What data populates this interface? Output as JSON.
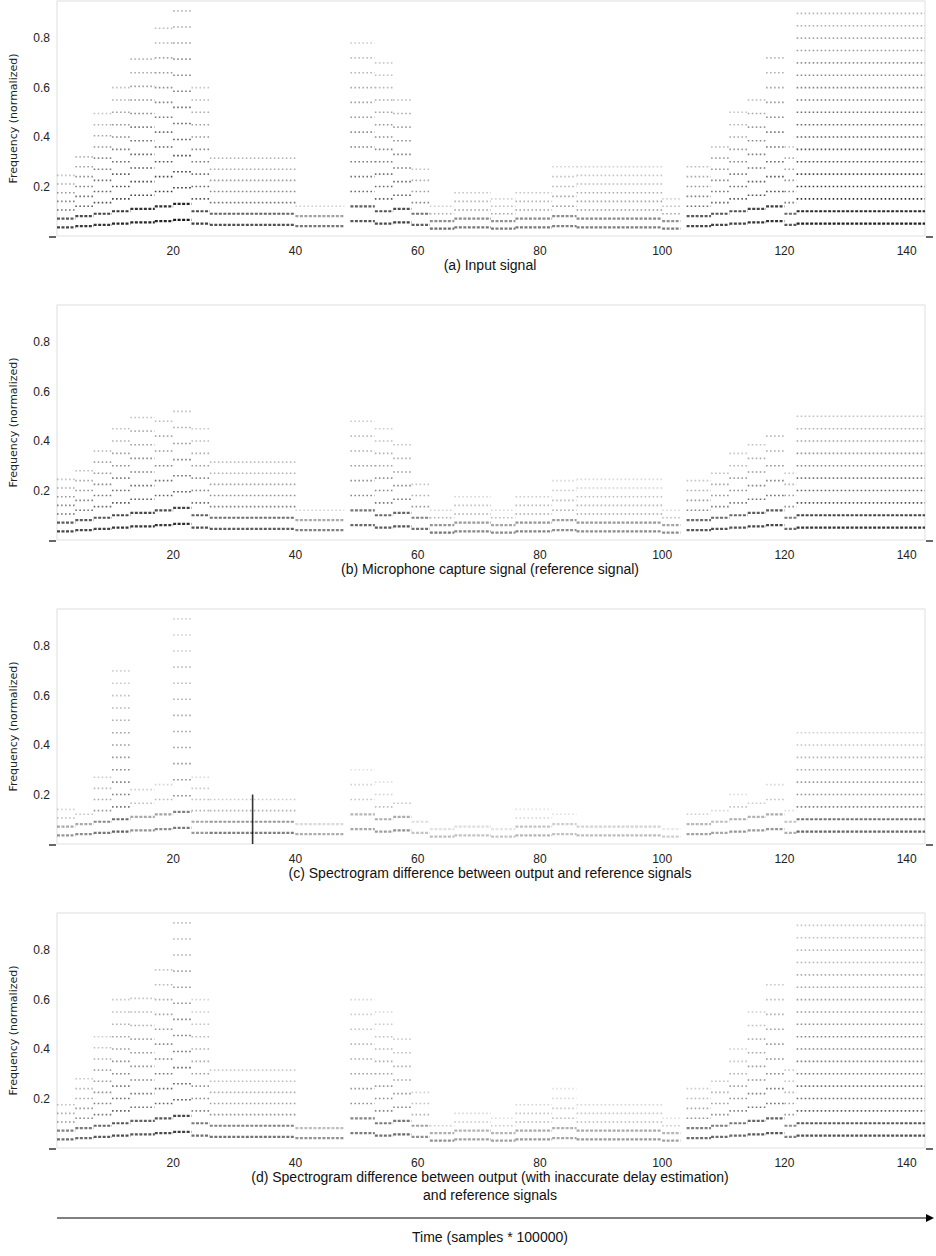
{
  "xlabel": "Time (samples * 100000)",
  "chart_data": [
    {
      "type": "spectrogram",
      "title": "(a) Input signal",
      "ylabel": "Frequency (normalized)",
      "xlim": [
        1,
        143
      ],
      "ylim": [
        0,
        0.95
      ],
      "xticks": [
        20,
        40,
        60,
        80,
        100,
        120,
        140
      ],
      "yticks": [
        0.2,
        0.4,
        0.6,
        0.8
      ],
      "color": "#000000",
      "notes": [
        {
          "start": 1,
          "end": 4,
          "f0": 0.035,
          "fmax": 0.25,
          "level": 0.8
        },
        {
          "start": 4,
          "end": 7,
          "f0": 0.04,
          "fmax": 0.35,
          "level": 0.85
        },
        {
          "start": 7,
          "end": 10,
          "f0": 0.045,
          "fmax": 0.5,
          "level": 0.85
        },
        {
          "start": 10,
          "end": 13,
          "f0": 0.05,
          "fmax": 0.6,
          "level": 0.9
        },
        {
          "start": 13,
          "end": 17,
          "f0": 0.055,
          "fmax": 0.75,
          "level": 0.9
        },
        {
          "start": 17,
          "end": 20,
          "f0": 0.06,
          "fmax": 0.85,
          "level": 0.9
        },
        {
          "start": 20,
          "end": 23,
          "f0": 0.065,
          "fmax": 0.95,
          "level": 0.95
        },
        {
          "start": 23,
          "end": 26,
          "f0": 0.05,
          "fmax": 0.6,
          "level": 0.8
        },
        {
          "start": 26,
          "end": 40,
          "f0": 0.045,
          "fmax": 0.35,
          "level": 0.75
        },
        {
          "start": 40,
          "end": 48,
          "f0": 0.04,
          "fmax": 0.12,
          "level": 0.7
        },
        {
          "start": 49,
          "end": 53,
          "f0": 0.06,
          "fmax": 0.8,
          "level": 0.7
        },
        {
          "start": 53,
          "end": 56,
          "f0": 0.05,
          "fmax": 0.7,
          "level": 0.75
        },
        {
          "start": 56,
          "end": 59,
          "f0": 0.055,
          "fmax": 0.6,
          "level": 0.8
        },
        {
          "start": 59,
          "end": 62,
          "f0": 0.045,
          "fmax": 0.3,
          "level": 0.7
        },
        {
          "start": 62,
          "end": 66,
          "f0": 0.03,
          "fmax": 0.12,
          "level": 0.7
        },
        {
          "start": 66,
          "end": 72,
          "f0": 0.035,
          "fmax": 0.2,
          "level": 0.6
        },
        {
          "start": 72,
          "end": 76,
          "f0": 0.03,
          "fmax": 0.15,
          "level": 0.6
        },
        {
          "start": 76,
          "end": 82,
          "f0": 0.035,
          "fmax": 0.2,
          "level": 0.6
        },
        {
          "start": 82,
          "end": 86,
          "f0": 0.04,
          "fmax": 0.3,
          "level": 0.55
        },
        {
          "start": 86,
          "end": 100,
          "f0": 0.035,
          "fmax": 0.3,
          "level": 0.55
        },
        {
          "start": 100,
          "end": 103,
          "f0": 0.03,
          "fmax": 0.15,
          "level": 0.6
        },
        {
          "start": 104,
          "end": 108,
          "f0": 0.04,
          "fmax": 0.3,
          "level": 0.8
        },
        {
          "start": 108,
          "end": 111,
          "f0": 0.045,
          "fmax": 0.4,
          "level": 0.8
        },
        {
          "start": 111,
          "end": 114,
          "f0": 0.05,
          "fmax": 0.5,
          "level": 0.8
        },
        {
          "start": 114,
          "end": 117,
          "f0": 0.055,
          "fmax": 0.6,
          "level": 0.85
        },
        {
          "start": 117,
          "end": 120,
          "f0": 0.06,
          "fmax": 0.75,
          "level": 0.85
        },
        {
          "start": 120,
          "end": 122,
          "f0": 0.045,
          "fmax": 0.4,
          "level": 0.7
        },
        {
          "start": 122,
          "end": 143,
          "f0": 0.05,
          "fmax": 0.95,
          "level": 0.9
        }
      ]
    },
    {
      "type": "spectrogram",
      "title": "(b) Microphone capture signal (reference signal)",
      "ylabel": "Frequency (normalized)",
      "xlim": [
        1,
        143
      ],
      "ylim": [
        0,
        0.95
      ],
      "xticks": [
        20,
        40,
        60,
        80,
        100,
        120,
        140
      ],
      "yticks": [
        0.2,
        0.4,
        0.6,
        0.8
      ],
      "color": "#000000",
      "notes": [
        {
          "start": 1,
          "end": 4,
          "f0": 0.035,
          "fmax": 0.25,
          "level": 0.8
        },
        {
          "start": 4,
          "end": 7,
          "f0": 0.04,
          "fmax": 0.3,
          "level": 0.8
        },
        {
          "start": 7,
          "end": 10,
          "f0": 0.045,
          "fmax": 0.4,
          "level": 0.8
        },
        {
          "start": 10,
          "end": 13,
          "f0": 0.05,
          "fmax": 0.45,
          "level": 0.85
        },
        {
          "start": 13,
          "end": 17,
          "f0": 0.055,
          "fmax": 0.5,
          "level": 0.85
        },
        {
          "start": 17,
          "end": 20,
          "f0": 0.06,
          "fmax": 0.5,
          "level": 0.85
        },
        {
          "start": 20,
          "end": 23,
          "f0": 0.065,
          "fmax": 0.52,
          "level": 0.9
        },
        {
          "start": 23,
          "end": 26,
          "f0": 0.05,
          "fmax": 0.45,
          "level": 0.75
        },
        {
          "start": 26,
          "end": 40,
          "f0": 0.045,
          "fmax": 0.35,
          "level": 0.7
        },
        {
          "start": 40,
          "end": 48,
          "f0": 0.04,
          "fmax": 0.12,
          "level": 0.65
        },
        {
          "start": 49,
          "end": 53,
          "f0": 0.06,
          "fmax": 0.5,
          "level": 0.65
        },
        {
          "start": 53,
          "end": 56,
          "f0": 0.05,
          "fmax": 0.45,
          "level": 0.7
        },
        {
          "start": 56,
          "end": 59,
          "f0": 0.055,
          "fmax": 0.4,
          "level": 0.75
        },
        {
          "start": 59,
          "end": 62,
          "f0": 0.045,
          "fmax": 0.25,
          "level": 0.65
        },
        {
          "start": 62,
          "end": 66,
          "f0": 0.03,
          "fmax": 0.12,
          "level": 0.65
        },
        {
          "start": 66,
          "end": 72,
          "f0": 0.035,
          "fmax": 0.18,
          "level": 0.55
        },
        {
          "start": 72,
          "end": 76,
          "f0": 0.03,
          "fmax": 0.12,
          "level": 0.55
        },
        {
          "start": 76,
          "end": 82,
          "f0": 0.035,
          "fmax": 0.2,
          "level": 0.55
        },
        {
          "start": 82,
          "end": 86,
          "f0": 0.04,
          "fmax": 0.25,
          "level": 0.5
        },
        {
          "start": 86,
          "end": 100,
          "f0": 0.035,
          "fmax": 0.25,
          "level": 0.5
        },
        {
          "start": 100,
          "end": 103,
          "f0": 0.03,
          "fmax": 0.12,
          "level": 0.55
        },
        {
          "start": 104,
          "end": 108,
          "f0": 0.04,
          "fmax": 0.25,
          "level": 0.75
        },
        {
          "start": 108,
          "end": 111,
          "f0": 0.045,
          "fmax": 0.3,
          "level": 0.75
        },
        {
          "start": 111,
          "end": 114,
          "f0": 0.05,
          "fmax": 0.35,
          "level": 0.75
        },
        {
          "start": 114,
          "end": 117,
          "f0": 0.055,
          "fmax": 0.4,
          "level": 0.8
        },
        {
          "start": 117,
          "end": 120,
          "f0": 0.06,
          "fmax": 0.45,
          "level": 0.8
        },
        {
          "start": 120,
          "end": 122,
          "f0": 0.045,
          "fmax": 0.3,
          "level": 0.65
        },
        {
          "start": 122,
          "end": 143,
          "f0": 0.05,
          "fmax": 0.5,
          "level": 0.85
        }
      ]
    },
    {
      "type": "spectrogram",
      "title": "(c) Spectrogram difference between output and reference signals",
      "ylabel": "Frequency (normalized)",
      "xlim": [
        1,
        143
      ],
      "ylim": [
        0,
        0.95
      ],
      "xticks": [
        20,
        40,
        60,
        80,
        100,
        120,
        140
      ],
      "yticks": [
        0.2,
        0.4,
        0.6,
        0.8
      ],
      "color": "#000000",
      "notes": [
        {
          "start": 1,
          "end": 4,
          "f0": 0.035,
          "fmax": 0.15,
          "level": 0.5
        },
        {
          "start": 4,
          "end": 7,
          "f0": 0.04,
          "fmax": 0.15,
          "level": 0.55
        },
        {
          "start": 7,
          "end": 10,
          "f0": 0.045,
          "fmax": 0.3,
          "level": 0.6
        },
        {
          "start": 10,
          "end": 13,
          "f0": 0.05,
          "fmax": 0.7,
          "level": 0.65
        },
        {
          "start": 13,
          "end": 17,
          "f0": 0.055,
          "fmax": 0.25,
          "level": 0.5
        },
        {
          "start": 17,
          "end": 20,
          "f0": 0.06,
          "fmax": 0.25,
          "level": 0.55
        },
        {
          "start": 20,
          "end": 23,
          "f0": 0.065,
          "fmax": 0.95,
          "level": 0.55
        },
        {
          "start": 23,
          "end": 26,
          "f0": 0.045,
          "fmax": 0.3,
          "level": 0.45
        },
        {
          "start": 26,
          "end": 40,
          "f0": 0.045,
          "fmax": 0.2,
          "level": 0.6
        },
        {
          "start": 40,
          "end": 48,
          "f0": 0.04,
          "fmax": 0.08,
          "level": 0.5
        },
        {
          "start": 49,
          "end": 53,
          "f0": 0.06,
          "fmax": 0.3,
          "level": 0.4
        },
        {
          "start": 53,
          "end": 56,
          "f0": 0.05,
          "fmax": 0.25,
          "level": 0.45
        },
        {
          "start": 56,
          "end": 59,
          "f0": 0.055,
          "fmax": 0.2,
          "level": 0.55
        },
        {
          "start": 59,
          "end": 62,
          "f0": 0.045,
          "fmax": 0.1,
          "level": 0.35
        },
        {
          "start": 62,
          "end": 66,
          "f0": 0.03,
          "fmax": 0.06,
          "level": 0.4
        },
        {
          "start": 66,
          "end": 72,
          "f0": 0.035,
          "fmax": 0.08,
          "level": 0.35
        },
        {
          "start": 72,
          "end": 76,
          "f0": 0.03,
          "fmax": 0.06,
          "level": 0.35
        },
        {
          "start": 76,
          "end": 82,
          "f0": 0.035,
          "fmax": 0.15,
          "level": 0.35
        },
        {
          "start": 82,
          "end": 86,
          "f0": 0.04,
          "fmax": 0.15,
          "level": 0.3
        },
        {
          "start": 86,
          "end": 100,
          "f0": 0.035,
          "fmax": 0.1,
          "level": 0.35
        },
        {
          "start": 100,
          "end": 103,
          "f0": 0.03,
          "fmax": 0.06,
          "level": 0.3
        },
        {
          "start": 104,
          "end": 108,
          "f0": 0.04,
          "fmax": 0.15,
          "level": 0.45
        },
        {
          "start": 108,
          "end": 111,
          "f0": 0.045,
          "fmax": 0.15,
          "level": 0.45
        },
        {
          "start": 111,
          "end": 114,
          "f0": 0.05,
          "fmax": 0.2,
          "level": 0.5
        },
        {
          "start": 114,
          "end": 117,
          "f0": 0.055,
          "fmax": 0.2,
          "level": 0.5
        },
        {
          "start": 117,
          "end": 120,
          "f0": 0.06,
          "fmax": 0.25,
          "level": 0.5
        },
        {
          "start": 120,
          "end": 122,
          "f0": 0.045,
          "fmax": 0.15,
          "level": 0.4
        },
        {
          "start": 122,
          "end": 143,
          "f0": 0.05,
          "fmax": 0.45,
          "level": 0.65
        }
      ],
      "transients": [
        {
          "time": 33,
          "fmax": 0.2,
          "level": 0.8
        }
      ]
    },
    {
      "type": "spectrogram",
      "title": "(d) Spectrogram difference between output (with inaccurate delay estimation) and reference signals",
      "ylabel": "Frequency (normalized)",
      "xlim": [
        1,
        143
      ],
      "ylim": [
        0,
        0.95
      ],
      "xticks": [
        20,
        40,
        60,
        80,
        100,
        120,
        140
      ],
      "yticks": [
        0.2,
        0.4,
        0.6,
        0.8
      ],
      "color": "#000000",
      "notes": [
        {
          "start": 1,
          "end": 4,
          "f0": 0.035,
          "fmax": 0.2,
          "level": 0.65
        },
        {
          "start": 4,
          "end": 7,
          "f0": 0.04,
          "fmax": 0.3,
          "level": 0.65
        },
        {
          "start": 7,
          "end": 10,
          "f0": 0.045,
          "fmax": 0.45,
          "level": 0.7
        },
        {
          "start": 10,
          "end": 13,
          "f0": 0.05,
          "fmax": 0.6,
          "level": 0.75
        },
        {
          "start": 13,
          "end": 17,
          "f0": 0.055,
          "fmax": 0.65,
          "level": 0.7
        },
        {
          "start": 17,
          "end": 20,
          "f0": 0.06,
          "fmax": 0.75,
          "level": 0.75
        },
        {
          "start": 20,
          "end": 23,
          "f0": 0.065,
          "fmax": 0.95,
          "level": 0.8
        },
        {
          "start": 23,
          "end": 26,
          "f0": 0.05,
          "fmax": 0.6,
          "level": 0.6
        },
        {
          "start": 26,
          "end": 40,
          "f0": 0.045,
          "fmax": 0.35,
          "level": 0.6
        },
        {
          "start": 40,
          "end": 48,
          "f0": 0.04,
          "fmax": 0.1,
          "level": 0.6
        },
        {
          "start": 49,
          "end": 53,
          "f0": 0.06,
          "fmax": 0.6,
          "level": 0.55
        },
        {
          "start": 53,
          "end": 56,
          "f0": 0.05,
          "fmax": 0.55,
          "level": 0.6
        },
        {
          "start": 56,
          "end": 59,
          "f0": 0.055,
          "fmax": 0.45,
          "level": 0.65
        },
        {
          "start": 59,
          "end": 62,
          "f0": 0.045,
          "fmax": 0.25,
          "level": 0.5
        },
        {
          "start": 62,
          "end": 66,
          "f0": 0.03,
          "fmax": 0.1,
          "level": 0.55
        },
        {
          "start": 66,
          "end": 72,
          "f0": 0.035,
          "fmax": 0.15,
          "level": 0.45
        },
        {
          "start": 72,
          "end": 76,
          "f0": 0.03,
          "fmax": 0.12,
          "level": 0.45
        },
        {
          "start": 76,
          "end": 82,
          "f0": 0.035,
          "fmax": 0.2,
          "level": 0.45
        },
        {
          "start": 82,
          "end": 86,
          "f0": 0.04,
          "fmax": 0.25,
          "level": 0.4
        },
        {
          "start": 86,
          "end": 100,
          "f0": 0.035,
          "fmax": 0.2,
          "level": 0.45
        },
        {
          "start": 100,
          "end": 103,
          "f0": 0.03,
          "fmax": 0.12,
          "level": 0.45
        },
        {
          "start": 104,
          "end": 108,
          "f0": 0.04,
          "fmax": 0.25,
          "level": 0.65
        },
        {
          "start": 108,
          "end": 111,
          "f0": 0.045,
          "fmax": 0.3,
          "level": 0.65
        },
        {
          "start": 111,
          "end": 114,
          "f0": 0.05,
          "fmax": 0.4,
          "level": 0.65
        },
        {
          "start": 114,
          "end": 117,
          "f0": 0.055,
          "fmax": 0.55,
          "level": 0.7
        },
        {
          "start": 117,
          "end": 120,
          "f0": 0.06,
          "fmax": 0.7,
          "level": 0.7
        },
        {
          "start": 120,
          "end": 122,
          "f0": 0.045,
          "fmax": 0.35,
          "level": 0.55
        },
        {
          "start": 122,
          "end": 143,
          "f0": 0.05,
          "fmax": 0.95,
          "level": 0.7
        }
      ]
    }
  ]
}
